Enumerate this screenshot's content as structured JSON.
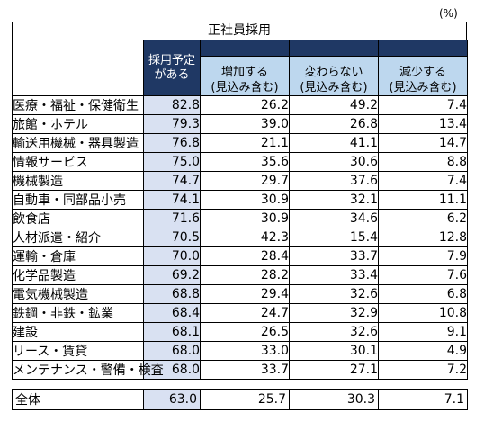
{
  "unit_label": "(%)",
  "title": "正社員採用",
  "headers": {
    "rate_line1": "採用予定",
    "rate_line2": "がある",
    "increase_line1": "増加する",
    "increase_line2": "(見込み含む)",
    "same_line1": "変わらない",
    "same_line2": "(見込み含む)",
    "decrease_line1": "減少する",
    "decrease_line2": "(見込み含む)"
  },
  "rows": [
    {
      "label": "医療・福祉・保健衛生",
      "rate": "82.8",
      "increase": "26.2",
      "same": "49.2",
      "decrease": "7.4"
    },
    {
      "label": "旅館・ホテル",
      "rate": "79.3",
      "increase": "39.0",
      "same": "26.8",
      "decrease": "13.4"
    },
    {
      "label": "輸送用機械・器具製造",
      "rate": "76.8",
      "increase": "21.1",
      "same": "41.1",
      "decrease": "14.7"
    },
    {
      "label": "情報サービス",
      "rate": "75.0",
      "increase": "35.6",
      "same": "30.6",
      "decrease": "8.8"
    },
    {
      "label": "機械製造",
      "rate": "74.7",
      "increase": "29.7",
      "same": "37.6",
      "decrease": "7.4"
    },
    {
      "label": "自動車・同部品小売",
      "rate": "74.1",
      "increase": "30.9",
      "same": "32.1",
      "decrease": "11.1"
    },
    {
      "label": "飲食店",
      "rate": "71.6",
      "increase": "30.9",
      "same": "34.6",
      "decrease": "6.2"
    },
    {
      "label": "人材派遣・紹介",
      "rate": "70.5",
      "increase": "42.3",
      "same": "15.4",
      "decrease": "12.8"
    },
    {
      "label": "運輸・倉庫",
      "rate": "70.0",
      "increase": "28.4",
      "same": "33.7",
      "decrease": "7.9"
    },
    {
      "label": "化学品製造",
      "rate": "69.2",
      "increase": "28.2",
      "same": "33.4",
      "decrease": "7.6"
    },
    {
      "label": "電気機械製造",
      "rate": "68.8",
      "increase": "29.4",
      "same": "32.6",
      "decrease": "6.8"
    },
    {
      "label": "鉄鋼・非鉄・鉱業",
      "rate": "68.4",
      "increase": "24.7",
      "same": "32.9",
      "decrease": "10.8"
    },
    {
      "label": "建設",
      "rate": "68.1",
      "increase": "26.5",
      "same": "32.6",
      "decrease": "9.1"
    },
    {
      "label": "リース・賃貸",
      "rate": "68.0",
      "increase": "33.0",
      "same": "30.1",
      "decrease": "4.9"
    },
    {
      "label": "メンテナンス・警備・検査",
      "rate": "68.0",
      "increase": "33.7",
      "same": "27.1",
      "decrease": "7.2"
    }
  ],
  "total": {
    "label": "全体",
    "rate": "63.0",
    "increase": "25.7",
    "same": "30.3",
    "decrease": "7.1"
  }
}
